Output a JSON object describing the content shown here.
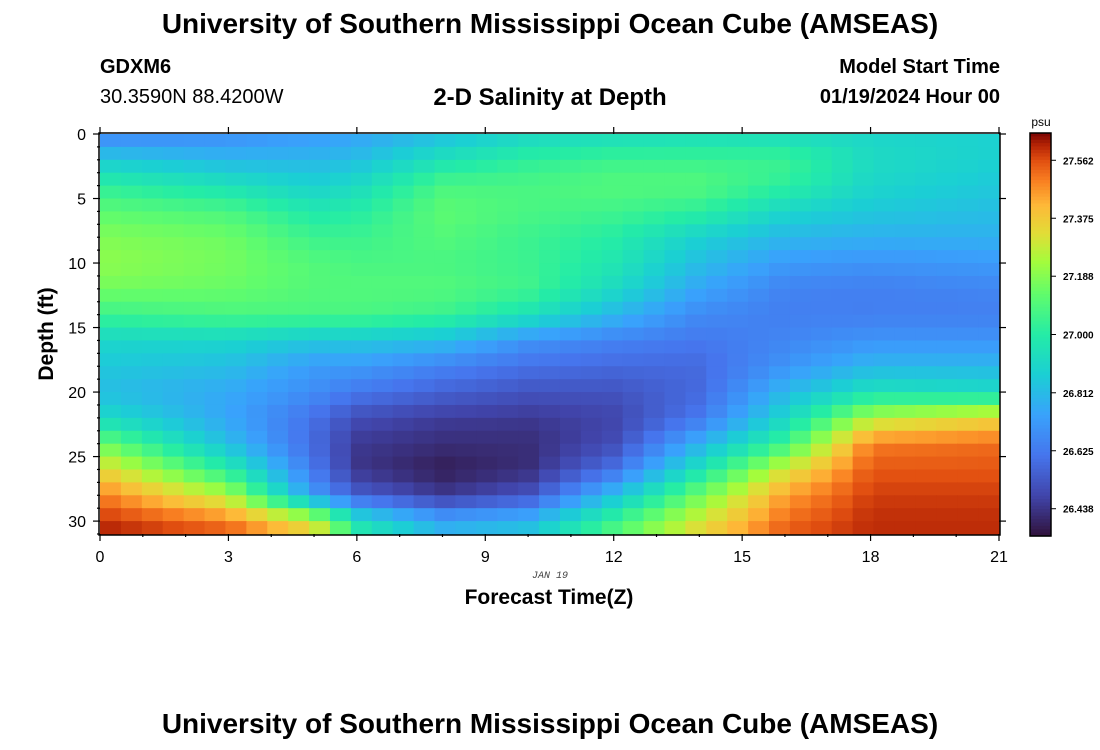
{
  "header": {
    "title": "University of Southern Mississippi Ocean Cube (AMSEAS)",
    "station_id": "GDXM6",
    "coords": "30.3590N  88.4200W",
    "subtitle": "2-D Salinity at Depth",
    "start_label": "Model Start Time",
    "start_value": "01/19/2024 Hour 00"
  },
  "footer": {
    "title": "University of Southern Mississippi Ocean Cube (AMSEAS)"
  },
  "chart_data": {
    "type": "heatmap",
    "title": "2-D Salinity at Depth",
    "xlabel": "Forecast Time(Z)",
    "ylabel": "Depth (ft)",
    "date_label": "JAN 19",
    "xlim": [
      0,
      21
    ],
    "ylim": [
      0,
      31
    ],
    "xticks": [
      0,
      3,
      6,
      9,
      12,
      15,
      18,
      21
    ],
    "yticks": [
      0,
      5,
      10,
      15,
      20,
      25,
      30
    ],
    "colorbar": {
      "unit": "psu",
      "min": 26.35,
      "max": 27.65,
      "ticks": [
        "27.562",
        "27.375",
        "27.188",
        "27.000",
        "26.812",
        "26.625",
        "26.438"
      ]
    },
    "grid": {
      "nx": 43,
      "ny": 31
    },
    "depth_profiles": {
      "depths": [
        0,
        2,
        4,
        6,
        8,
        10,
        12,
        14,
        16,
        18,
        20,
        22,
        24,
        26,
        28,
        30,
        31
      ],
      "profiles": [
        {
          "hour": 0,
          "values": [
            26.65,
            26.86,
            27.02,
            27.12,
            27.18,
            27.2,
            27.16,
            27.05,
            26.9,
            26.85,
            26.82,
            26.92,
            27.15,
            27.35,
            27.5,
            27.6,
            27.62
          ]
        },
        {
          "hour": 3,
          "values": [
            26.68,
            26.8,
            26.95,
            27.08,
            27.15,
            27.16,
            27.14,
            27.08,
            26.9,
            26.82,
            26.76,
            26.75,
            26.82,
            27.0,
            27.25,
            27.5,
            27.55
          ]
        },
        {
          "hour": 5,
          "values": [
            26.72,
            26.8,
            26.88,
            26.98,
            27.05,
            27.1,
            27.1,
            27.08,
            26.85,
            26.72,
            26.68,
            26.6,
            26.58,
            26.62,
            26.72,
            27.3,
            27.35
          ]
        },
        {
          "hour": 6,
          "values": [
            26.74,
            26.82,
            26.92,
            27.0,
            27.05,
            27.08,
            27.1,
            27.08,
            26.85,
            26.72,
            26.62,
            26.5,
            26.45,
            26.44,
            26.55,
            26.95,
            27.0
          ]
        },
        {
          "hour": 8,
          "values": [
            26.82,
            26.95,
            27.08,
            27.12,
            27.1,
            27.08,
            27.1,
            27.05,
            26.82,
            26.65,
            26.56,
            26.46,
            26.42,
            26.38,
            26.45,
            26.75,
            26.8
          ]
        },
        {
          "hour": 10,
          "values": [
            26.9,
            27.02,
            27.08,
            27.08,
            27.05,
            27.05,
            27.06,
            26.95,
            26.7,
            26.6,
            26.52,
            26.45,
            26.42,
            26.42,
            26.52,
            26.8,
            26.85
          ]
        },
        {
          "hour": 12,
          "values": [
            26.92,
            27.05,
            27.1,
            27.06,
            27.0,
            26.97,
            26.92,
            26.8,
            26.65,
            26.58,
            26.52,
            26.48,
            26.5,
            26.6,
            26.82,
            27.05,
            27.1
          ]
        },
        {
          "hour": 14,
          "values": [
            26.93,
            27.05,
            27.1,
            27.02,
            26.88,
            26.82,
            26.75,
            26.67,
            26.62,
            26.58,
            26.58,
            26.62,
            26.78,
            26.95,
            27.15,
            27.3,
            27.35
          ]
        },
        {
          "hour": 16,
          "values": [
            26.92,
            27.05,
            27.02,
            26.9,
            26.8,
            26.72,
            26.65,
            26.64,
            26.66,
            26.7,
            26.8,
            26.9,
            27.05,
            27.3,
            27.45,
            27.52,
            27.55
          ]
        },
        {
          "hour": 18,
          "values": [
            26.9,
            26.92,
            26.9,
            26.85,
            26.78,
            26.7,
            26.64,
            26.64,
            26.7,
            26.8,
            26.95,
            27.25,
            27.5,
            27.55,
            27.58,
            27.6,
            27.6
          ]
        },
        {
          "hour": 21,
          "values": [
            26.88,
            26.88,
            26.85,
            26.82,
            26.78,
            26.72,
            26.66,
            26.64,
            26.7,
            26.8,
            26.92,
            27.35,
            27.52,
            27.55,
            27.58,
            27.6,
            27.6
          ]
        }
      ]
    }
  }
}
